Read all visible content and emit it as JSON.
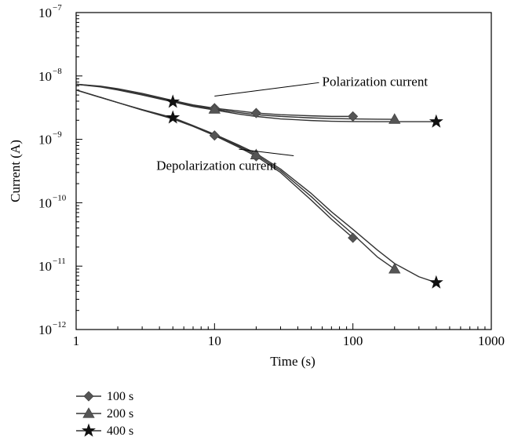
{
  "chart_data": {
    "type": "line",
    "title": "",
    "xlabel": "Time (s)",
    "ylabel": "Current (A)",
    "x_scale": "log",
    "y_scale": "log",
    "xlim": [
      1,
      1000
    ],
    "ylim": [
      1e-12,
      1e-07
    ],
    "grid": false,
    "legend_position": "bottom-left",
    "x_ticks": [
      {
        "value": 1,
        "label": "1"
      },
      {
        "value": 10,
        "label": "10"
      },
      {
        "value": 100,
        "label": "100"
      },
      {
        "value": 1000,
        "label": "1000"
      }
    ],
    "y_ticks": [
      {
        "value": 1e-12,
        "base": "10",
        "exp": "−12"
      },
      {
        "value": 1e-11,
        "base": "10",
        "exp": "−11"
      },
      {
        "value": 1e-10,
        "base": "10",
        "exp": "−10"
      },
      {
        "value": 1e-09,
        "base": "10",
        "exp": "−9"
      },
      {
        "value": 1e-08,
        "base": "10",
        "exp": "−8"
      },
      {
        "value": 1e-07,
        "base": "10",
        "exp": "−7"
      }
    ],
    "annotations": [
      {
        "text": "Polarization current",
        "x": 60,
        "y": 7e-09,
        "arrow_to": [
          10,
          4.8e-09
        ]
      },
      {
        "text": "Depolarization current",
        "x": 3.8,
        "y": 3.3e-10,
        "arrow_to": [
          15,
          7e-10
        ]
      }
    ],
    "series": [
      {
        "name": "100 s",
        "marker": "diamond",
        "group": "polarization",
        "x": [
          1,
          1.5,
          2,
          3,
          5,
          7,
          10,
          15,
          20,
          30,
          50,
          70,
          100
        ],
        "y": [
          7.4e-09,
          6.9e-09,
          6.3e-09,
          5.3e-09,
          4.1e-09,
          3.5e-09,
          3.1e-09,
          2.8e-09,
          2.6e-09,
          2.45e-09,
          2.35e-09,
          2.3e-09,
          2.3e-09
        ],
        "markers_at": [
          10,
          20,
          100
        ]
      },
      {
        "name": "200 s",
        "marker": "triangle",
        "group": "polarization",
        "x": [
          1,
          1.5,
          2,
          3,
          5,
          7,
          10,
          15,
          20,
          30,
          50,
          70,
          100,
          150,
          200
        ],
        "y": [
          7.4e-09,
          6.8e-09,
          6.1e-09,
          5.1e-09,
          4e-09,
          3.4e-09,
          3e-09,
          2.65e-09,
          2.45e-09,
          2.3e-09,
          2.18e-09,
          2.13e-09,
          2.1e-09,
          2.08e-09,
          2.07e-09
        ],
        "markers_at": [
          10,
          200
        ]
      },
      {
        "name": "400 s",
        "marker": "star",
        "group": "polarization",
        "x": [
          1,
          1.5,
          2,
          3,
          5,
          7,
          10,
          15,
          20,
          30,
          50,
          70,
          100,
          150,
          200,
          300,
          400
        ],
        "y": [
          7.4e-09,
          6.7e-09,
          6e-09,
          5e-09,
          3.9e-09,
          3.3e-09,
          2.9e-09,
          2.5e-09,
          2.3e-09,
          2.1e-09,
          1.98e-09,
          1.93e-09,
          1.91e-09,
          1.9e-09,
          1.9e-09,
          1.9e-09,
          1.9e-09
        ],
        "markers_at": [
          5,
          400
        ]
      },
      {
        "name": "100 s",
        "marker": "diamond",
        "group": "depolarization",
        "x": [
          1,
          2,
          3,
          5,
          7,
          10,
          15,
          20,
          30,
          50,
          70,
          100
        ],
        "y": [
          6e-09,
          3.8e-09,
          2.9e-09,
          2.1e-09,
          1.6e-09,
          1.15e-09,
          7.5e-10,
          5.4e-10,
          3e-10,
          1.1e-10,
          5.5e-11,
          2.8e-11
        ],
        "markers_at": [
          10,
          20,
          100
        ]
      },
      {
        "name": "200 s",
        "marker": "triangle",
        "group": "depolarization",
        "x": [
          1,
          2,
          3,
          5,
          7,
          10,
          15,
          20,
          30,
          50,
          70,
          100,
          150,
          200
        ],
        "y": [
          6e-09,
          3.8e-09,
          2.9e-09,
          2.15e-09,
          1.62e-09,
          1.18e-09,
          7.8e-10,
          5.7e-10,
          3.2e-10,
          1.25e-10,
          6.3e-11,
          3.2e-11,
          1.4e-11,
          9e-12
        ],
        "markers_at": [
          20,
          200
        ]
      },
      {
        "name": "400 s",
        "marker": "star",
        "group": "depolarization",
        "x": [
          1,
          2,
          3,
          5,
          7,
          10,
          15,
          20,
          30,
          50,
          70,
          100,
          150,
          200,
          300,
          400
        ],
        "y": [
          6e-09,
          3.8e-09,
          2.95e-09,
          2.2e-09,
          1.65e-09,
          1.2e-09,
          8.1e-10,
          6e-10,
          3.4e-10,
          1.4e-10,
          7.2e-11,
          3.8e-11,
          1.8e-11,
          1.1e-11,
          6.8e-12,
          5.5e-12
        ],
        "markers_at": [
          5,
          400
        ]
      }
    ],
    "legend": [
      {
        "label": "100 s",
        "marker": "diamond"
      },
      {
        "label": "200 s",
        "marker": "triangle"
      },
      {
        "label": "400 s",
        "marker": "star"
      }
    ]
  }
}
